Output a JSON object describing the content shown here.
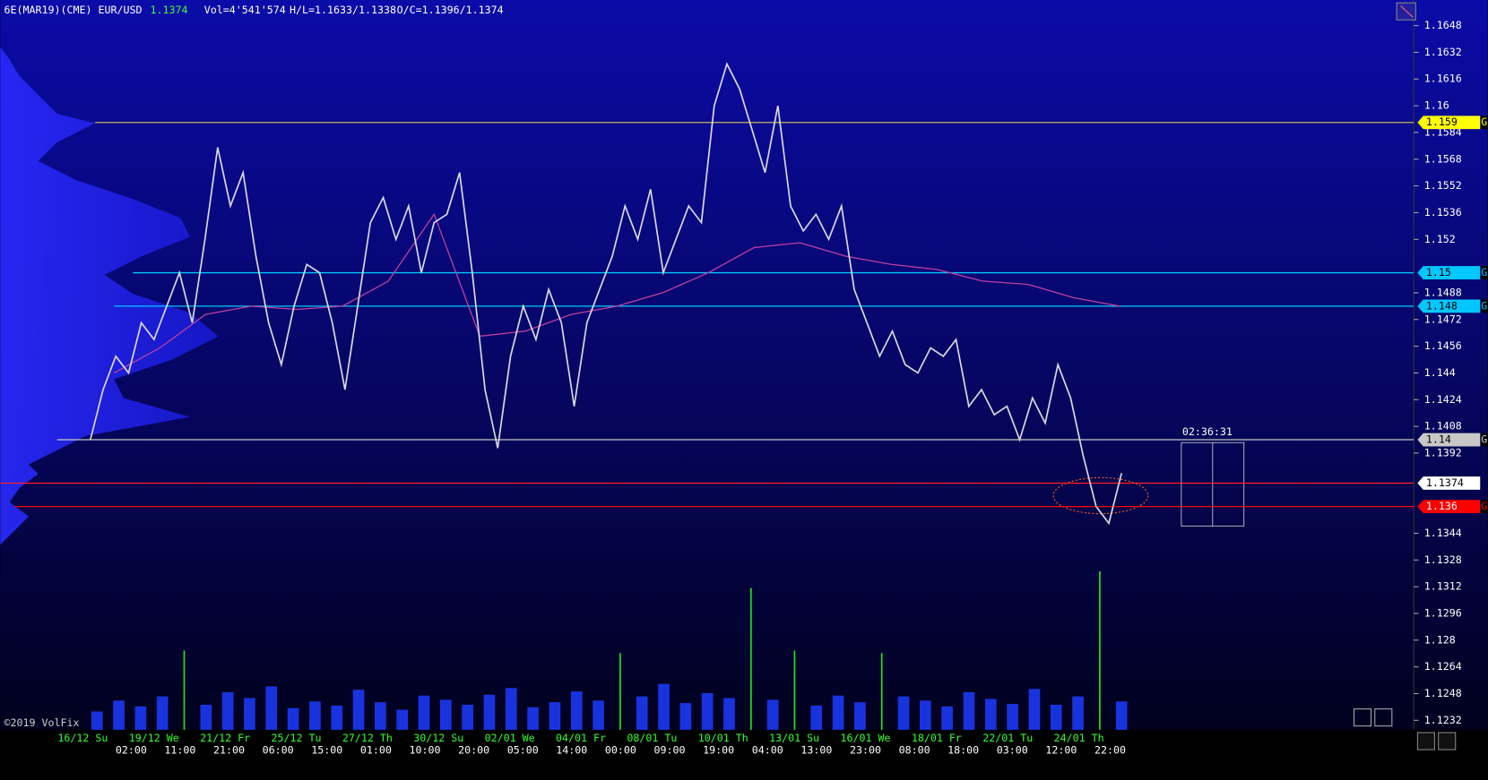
{
  "header": {
    "symbol": "6E(MAR19)(CME) EUR/USD",
    "last": "1.1374",
    "volume": "Vol=4'541'574",
    "high_low": "H/L=1.1633/1.1338",
    "open_close": "O/C=1.1396/1.1374"
  },
  "timer": "02:36:31",
  "watermark": "©2019 VolFix",
  "yticks": [
    1.1648,
    1.1632,
    1.1616,
    1.16,
    1.1584,
    1.1568,
    1.1552,
    1.1536,
    1.152,
    1.1488,
    1.1472,
    1.1456,
    1.144,
    1.1424,
    1.1408,
    1.1392,
    1.1344,
    1.1328,
    1.1312,
    1.1296,
    1.128,
    1.1264,
    1.1248,
    1.1232
  ],
  "levels": [
    {
      "value": 1.159,
      "suffix": "G",
      "color": "#ffff00"
    },
    {
      "value": 1.15,
      "suffix": "G",
      "color": "#00c8ff"
    },
    {
      "value": 1.148,
      "suffix": "G",
      "color": "#00c8ff"
    },
    {
      "value": 1.14,
      "suffix": "G",
      "color": "#c8c8c8"
    },
    {
      "value": 1.1374,
      "color": "#ffffff"
    },
    {
      "value": 1.136,
      "suffix": "G",
      "color": "#ff0000"
    }
  ],
  "date_labels": [
    "16/12 Su",
    "19/12 We",
    "21/12 Fr",
    "25/12 Tu",
    "27/12 Th",
    "30/12 Su",
    "02/01 We",
    "04/01 Fr",
    "08/01 Tu",
    "10/01 Th",
    "13/01 Su",
    "16/01 We",
    "18/01 Fr",
    "22/01 Tu",
    "24/01 Th"
  ],
  "time_labels": [
    "02:00",
    "11:00",
    "21:00",
    "06:00",
    "15:00",
    "01:00",
    "10:00",
    "20:00",
    "05:00",
    "14:00",
    "00:00",
    "09:00",
    "19:00",
    "04:00",
    "13:00",
    "23:00",
    "08:00",
    "18:00",
    "03:00",
    "12:00",
    "22:00"
  ],
  "price": [
    1.14,
    1.143,
    1.145,
    1.144,
    1.147,
    1.146,
    1.148,
    1.15,
    1.147,
    1.152,
    1.1575,
    1.154,
    1.156,
    1.151,
    1.147,
    1.1445,
    1.148,
    1.1505,
    1.15,
    1.147,
    1.143,
    1.148,
    1.153,
    1.1545,
    1.152,
    1.154,
    1.15,
    1.153,
    1.1535,
    1.156,
    1.15,
    1.143,
    1.1395,
    1.145,
    1.148,
    1.146,
    1.149,
    1.147,
    1.142,
    1.147,
    1.149,
    1.151,
    1.154,
    1.152,
    1.155,
    1.15,
    1.152,
    1.154,
    1.153,
    1.16,
    1.1625,
    1.161,
    1.1585,
    1.156,
    1.16,
    1.154,
    1.1525,
    1.1535,
    1.152,
    1.154,
    1.149,
    1.147,
    1.145,
    1.1465,
    1.1445,
    1.144,
    1.1455,
    1.145,
    1.146,
    1.142,
    1.143,
    1.1415,
    1.142,
    1.14,
    1.1425,
    1.141,
    1.1445,
    1.1425,
    1.139,
    1.136,
    1.135,
    1.138
  ],
  "average": [
    1.144,
    1.1455,
    1.1475,
    1.148,
    1.1478,
    1.148,
    1.1495,
    1.1535,
    1.1462,
    1.1465,
    1.1475,
    1.148,
    1.1488,
    1.15,
    1.1515,
    1.1518,
    1.151,
    1.1505,
    1.1502,
    1.1495,
    1.1493,
    1.1485,
    1.148
  ],
  "volume": [
    22,
    35,
    28,
    40,
    95,
    30,
    45,
    38,
    52,
    26,
    34,
    29,
    48,
    33,
    24,
    41,
    36,
    30,
    42,
    50,
    27,
    33,
    46,
    35,
    92,
    40,
    55,
    32,
    44,
    38,
    170,
    36,
    95,
    29,
    41,
    33,
    92,
    40,
    35,
    28,
    45,
    37,
    31,
    49,
    30,
    40,
    190,
    34
  ]
}
